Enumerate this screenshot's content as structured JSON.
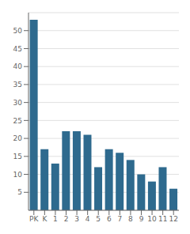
{
  "chart_data": {
    "type": "bar",
    "categories": [
      "PK",
      "K",
      "1",
      "2",
      "3",
      "4",
      "5",
      "6",
      "7",
      "8",
      "9",
      "10",
      "11",
      "12"
    ],
    "values": [
      53,
      17,
      13,
      22,
      22,
      21,
      12,
      17,
      16,
      14,
      10,
      8,
      12,
      6
    ],
    "color": "#2e6a8e",
    "ylim": [
      0,
      55
    ],
    "yticks": [
      5,
      10,
      15,
      20,
      25,
      30,
      35,
      40,
      45,
      50
    ],
    "grid": true
  }
}
